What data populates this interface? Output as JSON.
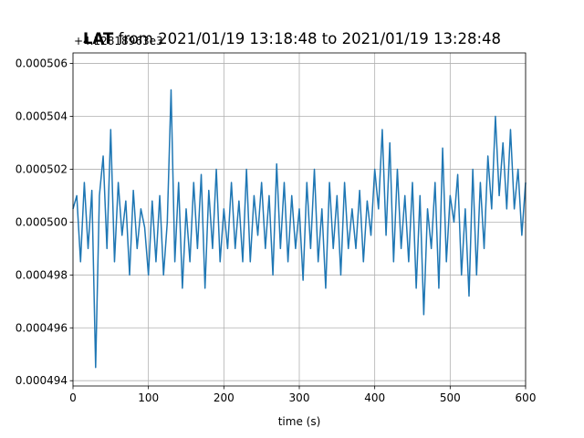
{
  "chart_data": {
    "type": "line",
    "title_bold": "LAT",
    "title_rest": " from 2021/01/19 13:18:48 to 2021/01/19 13:28:48",
    "offset_text": "+4.12818963e3",
    "xlabel": "time (s)",
    "ylabel": "",
    "xlim": [
      0,
      600
    ],
    "ylim": [
      0.0004938,
      0.0005064
    ],
    "xticks": [
      0,
      100,
      200,
      300,
      400,
      500,
      600
    ],
    "yticks": [
      0.000494,
      0.000496,
      0.000498,
      0.0005,
      0.000502,
      0.000504,
      0.000506
    ],
    "ytick_labels": [
      "0.000494",
      "0.000496",
      "0.000498",
      "0.000500",
      "0.000502",
      "0.000504",
      "0.000506"
    ],
    "grid": true,
    "color": "#1f77b4",
    "series": [
      {
        "x": [
          0,
          5,
          10,
          15,
          20,
          25,
          30,
          35,
          40,
          45,
          50,
          55,
          60,
          65,
          70,
          75,
          80,
          85,
          90,
          95,
          100,
          105,
          110,
          115,
          120,
          125,
          130,
          135,
          140,
          145,
          150,
          155,
          160,
          165,
          170,
          175,
          180,
          185,
          190,
          195,
          200,
          205,
          210,
          215,
          220,
          225,
          230,
          235,
          240,
          245,
          250,
          255,
          260,
          265,
          270,
          275,
          280,
          285,
          290,
          295,
          300,
          305,
          310,
          315,
          320,
          325,
          330,
          335,
          340,
          345,
          350,
          355,
          360,
          365,
          370,
          375,
          380,
          385,
          390,
          395,
          400,
          405,
          410,
          415,
          420,
          425,
          430,
          435,
          440,
          445,
          450,
          455,
          460,
          465,
          470,
          475,
          480,
          485,
          490,
          495,
          500,
          505,
          510,
          515,
          520,
          525,
          530,
          535,
          540,
          545,
          550,
          555,
          560,
          565,
          570,
          575,
          580,
          585,
          590,
          595,
          600
        ],
        "y": [
          0.0005005,
          0.000501,
          0.0004985,
          0.0005015,
          0.000499,
          0.0005012,
          0.0004945,
          0.000501,
          0.0005025,
          0.000499,
          0.0005035,
          0.0004985,
          0.0005015,
          0.0004995,
          0.0005008,
          0.000498,
          0.0005012,
          0.000499,
          0.0005005,
          0.0004998,
          0.000498,
          0.0005008,
          0.0004985,
          0.000501,
          0.000498,
          0.0005,
          0.000505,
          0.0004985,
          0.0005015,
          0.0004975,
          0.0005005,
          0.0004985,
          0.0005015,
          0.000499,
          0.0005018,
          0.0004975,
          0.0005012,
          0.000499,
          0.000502,
          0.0004985,
          0.0005005,
          0.000499,
          0.0005015,
          0.000499,
          0.0005008,
          0.0004985,
          0.000502,
          0.0004985,
          0.000501,
          0.0004995,
          0.0005015,
          0.000499,
          0.000501,
          0.000498,
          0.0005022,
          0.000499,
          0.0005015,
          0.0004985,
          0.000501,
          0.000499,
          0.0005005,
          0.0004978,
          0.0005015,
          0.000499,
          0.000502,
          0.0004985,
          0.0005005,
          0.0004975,
          0.0005015,
          0.000499,
          0.000501,
          0.000498,
          0.0005015,
          0.000499,
          0.0005005,
          0.000499,
          0.0005012,
          0.0004985,
          0.0005008,
          0.0004995,
          0.000502,
          0.0005005,
          0.0005035,
          0.0004995,
          0.000503,
          0.0004985,
          0.000502,
          0.000499,
          0.000501,
          0.0004985,
          0.0005015,
          0.0004975,
          0.000501,
          0.0004965,
          0.0005005,
          0.000499,
          0.0005015,
          0.0004975,
          0.0005028,
          0.0004985,
          0.000501,
          0.0005,
          0.0005018,
          0.000498,
          0.0005005,
          0.0004972,
          0.000502,
          0.000498,
          0.0005015,
          0.000499,
          0.0005025,
          0.0005005,
          0.000504,
          0.000501,
          0.000503,
          0.0005005,
          0.0005035,
          0.0005005,
          0.000502,
          0.0004995,
          0.0005015
        ]
      }
    ]
  }
}
